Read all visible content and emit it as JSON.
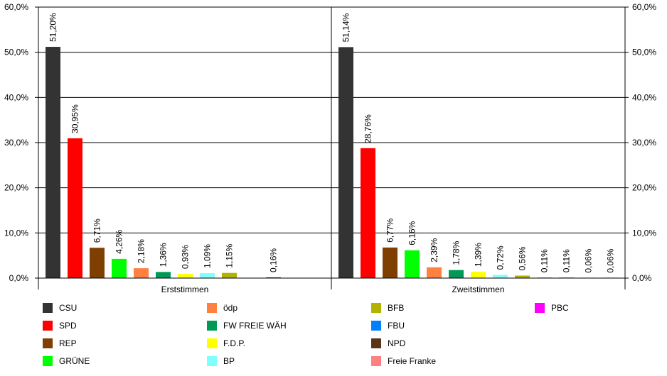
{
  "chart_data": {
    "type": "bar",
    "ylim": [
      0,
      60
    ],
    "y_ticks": [
      "0,0%",
      "10,0%",
      "20,0%",
      "30,0%",
      "40,0%",
      "50,0%",
      "60,0%"
    ],
    "y_tick_values": [
      0,
      10,
      20,
      30,
      40,
      50,
      60
    ],
    "grid": true,
    "legend_position": "bottom",
    "groups": [
      {
        "label": "Erststimmen",
        "bars": [
          {
            "party": "CSU",
            "value": 51.2,
            "label": "51,20%"
          },
          {
            "party": "SPD",
            "value": 30.95,
            "label": "30,95%"
          },
          {
            "party": "REP",
            "value": 6.71,
            "label": "6,71%"
          },
          {
            "party": "GRÜNE",
            "value": 4.26,
            "label": "4,26%"
          },
          {
            "party": "ödp",
            "value": 2.18,
            "label": "2,18%"
          },
          {
            "party": "FW FREIE WÄH",
            "value": 1.36,
            "label": "1,36%"
          },
          {
            "party": "F.D.P.",
            "value": 0.93,
            "label": "0,93%"
          },
          {
            "party": "BP",
            "value": 1.09,
            "label": "1,09%"
          },
          {
            "party": "BFB",
            "value": 1.15,
            "label": "1,15%"
          },
          {
            "party": "FBU",
            "value": null,
            "label": ""
          },
          {
            "party": "NPD",
            "value": 0.16,
            "label": "0,16%"
          }
        ]
      },
      {
        "label": "Zweitstimmen",
        "bars": [
          {
            "party": "CSU",
            "value": 51.14,
            "label": "51,14%"
          },
          {
            "party": "SPD",
            "value": 28.76,
            "label": "28,76%"
          },
          {
            "party": "REP",
            "value": 6.77,
            "label": "6,77%"
          },
          {
            "party": "GRÜNE",
            "value": 6.16,
            "label": "6,16%"
          },
          {
            "party": "ödp",
            "value": 2.39,
            "label": "2,39%"
          },
          {
            "party": "FW FREIE WÄH",
            "value": 1.78,
            "label": "1,78%"
          },
          {
            "party": "F.D.P.",
            "value": 1.39,
            "label": "1,39%"
          },
          {
            "party": "BP",
            "value": 0.72,
            "label": "0,72%"
          },
          {
            "party": "BFB",
            "value": 0.56,
            "label": "0,56%"
          },
          {
            "party": "FBU",
            "value": 0.11,
            "label": "0,11%"
          },
          {
            "party": "NPD",
            "value": 0.11,
            "label": "0,11%"
          },
          {
            "party": "Freie Franke",
            "value": 0.06,
            "label": "0,06%"
          },
          {
            "party": "PBC",
            "value": 0.06,
            "label": "0,06%"
          }
        ]
      }
    ],
    "legend": [
      {
        "name": "CSU",
        "color": "#333333"
      },
      {
        "name": "SPD",
        "color": "#ff0000"
      },
      {
        "name": "REP",
        "color": "#7f3f00"
      },
      {
        "name": "GRÜNE",
        "color": "#00ff00"
      },
      {
        "name": "ödp",
        "color": "#ff8040"
      },
      {
        "name": "FW FREIE WÄH",
        "color": "#009955"
      },
      {
        "name": "F.D.P.",
        "color": "#ffff00"
      },
      {
        "name": "BP",
        "color": "#80ffff"
      },
      {
        "name": "BFB",
        "color": "#b2b200"
      },
      {
        "name": "FBU",
        "color": "#0080ff"
      },
      {
        "name": "NPD",
        "color": "#5c3317"
      },
      {
        "name": "Freie Franke",
        "color": "#ff8080"
      },
      {
        "name": "PBC",
        "color": "#ff00ff"
      }
    ]
  }
}
